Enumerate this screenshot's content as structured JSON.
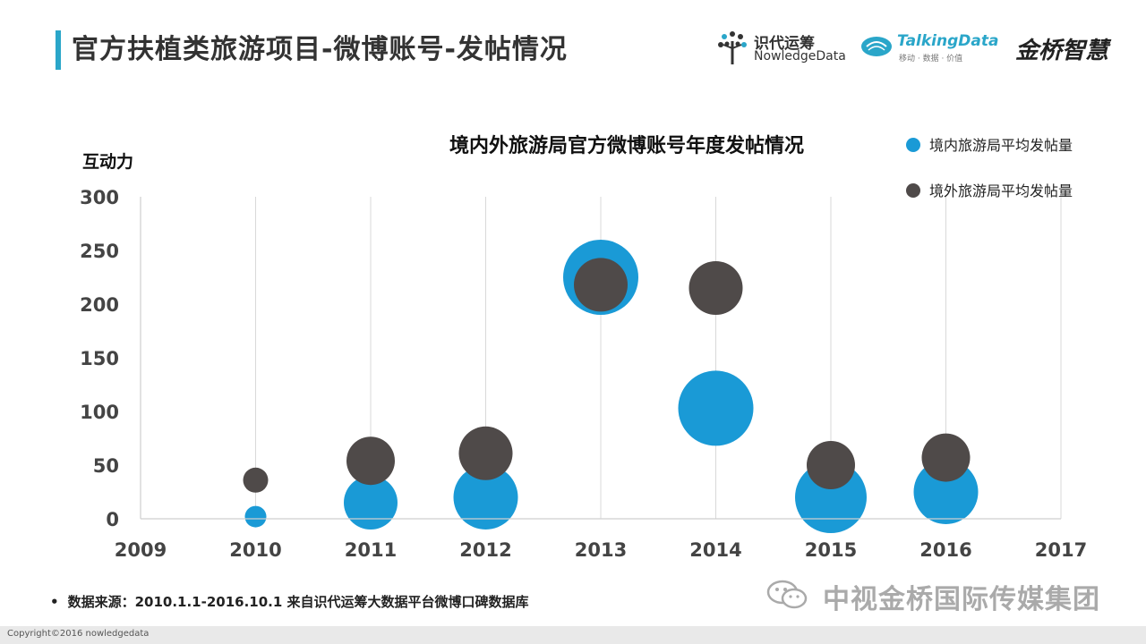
{
  "header": {
    "title": "官方扶植类旅游项目-微博账号-发帖情况"
  },
  "logos": {
    "logo1_cn": "识代运筹",
    "logo1_en": "NowledgeData",
    "logo2_en": "TalkingData",
    "logo2_sub": "移动 · 数据 · 价值",
    "logo3": "金桥智慧"
  },
  "chart_data": {
    "type": "scatter",
    "title": "境内外旅游局官方微博账号年度发帖情况",
    "xlabel": "",
    "ylabel": "互动力",
    "xlim": [
      2009,
      2017
    ],
    "ylim": [
      0,
      300
    ],
    "x_ticks": [
      "2009",
      "2010",
      "2011",
      "2012",
      "2013",
      "2014",
      "2015",
      "2016",
      "2017"
    ],
    "y_ticks": [
      "0",
      "50",
      "100",
      "150",
      "200",
      "250",
      "300"
    ],
    "grid": "vertical",
    "legend": "top-right",
    "series": [
      {
        "name": "境内旅游局平均发帖量",
        "color": "#1a9ad6",
        "x": [
          2010,
          2011,
          2012,
          2013,
          2014,
          2015,
          2016
        ],
        "y": [
          2,
          15,
          20,
          225,
          103,
          20,
          25
        ],
        "size": [
          12,
          30,
          36,
          42,
          42,
          40,
          36
        ]
      },
      {
        "name": "境外旅游局平均发帖量",
        "color": "#4f4a49",
        "x": [
          2010,
          2011,
          2012,
          2013,
          2014,
          2015,
          2016
        ],
        "y": [
          36,
          54,
          61,
          218,
          215,
          50,
          57
        ],
        "size": [
          14,
          27,
          30,
          30,
          30,
          27,
          27
        ]
      }
    ]
  },
  "footnote": {
    "bullet": "•",
    "text": "数据来源：2010.1.1-2016.10.1  来自识代运筹大数据平台微博口碑数据库"
  },
  "watermark": {
    "text": "中视金桥国际传媒集团"
  },
  "footer": {
    "copyright": "Copyright©2016 nowledgedata"
  }
}
